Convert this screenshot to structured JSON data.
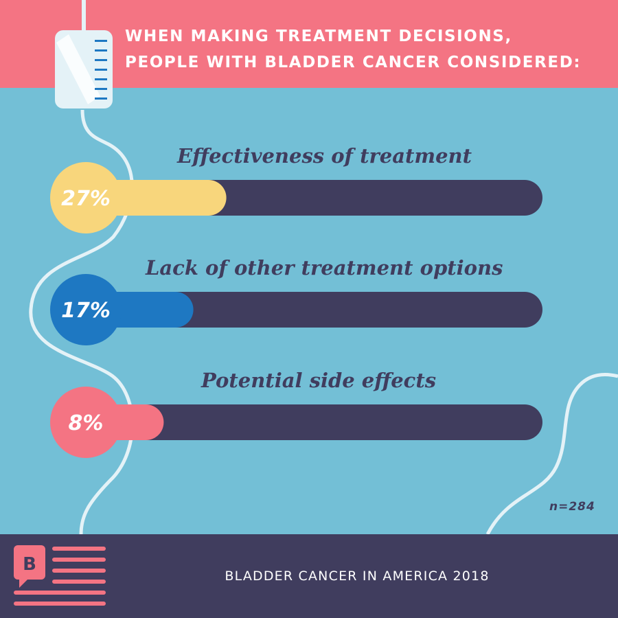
{
  "header": {
    "title_line1": "WHEN MAKING TREATMENT DECISIONS,",
    "title_line2": "PEOPLE WITH BLADDER CANCER CONSIDERED:"
  },
  "chart_data": {
    "type": "bar",
    "orientation": "horizontal",
    "categories": [
      "Effectiveness of treatment",
      "Lack of other treatment options",
      "Potential side effects"
    ],
    "values": [
      27,
      17,
      8
    ],
    "value_labels": [
      "27%",
      "17%",
      "8%"
    ],
    "colors": [
      "#f8d67c",
      "#1e78c2",
      "#f47483"
    ],
    "track_color": "#403d5e",
    "xlim": [
      0,
      100
    ],
    "title": "",
    "xlabel": "",
    "ylabel": "",
    "legend": "none",
    "grid": false
  },
  "sample_size": "n=284",
  "footer": {
    "logo_letter": "B",
    "text": "BLADDER CANCER IN AMERICA 2018"
  },
  "colors": {
    "header_bg": "#f47483",
    "background": "#73bfd6",
    "footer_bg": "#403d5e",
    "tube": "#e4f2f7",
    "accent_pink": "#f47483"
  },
  "icons": [
    "iv-bag-icon",
    "newspaper-logo-icon"
  ]
}
